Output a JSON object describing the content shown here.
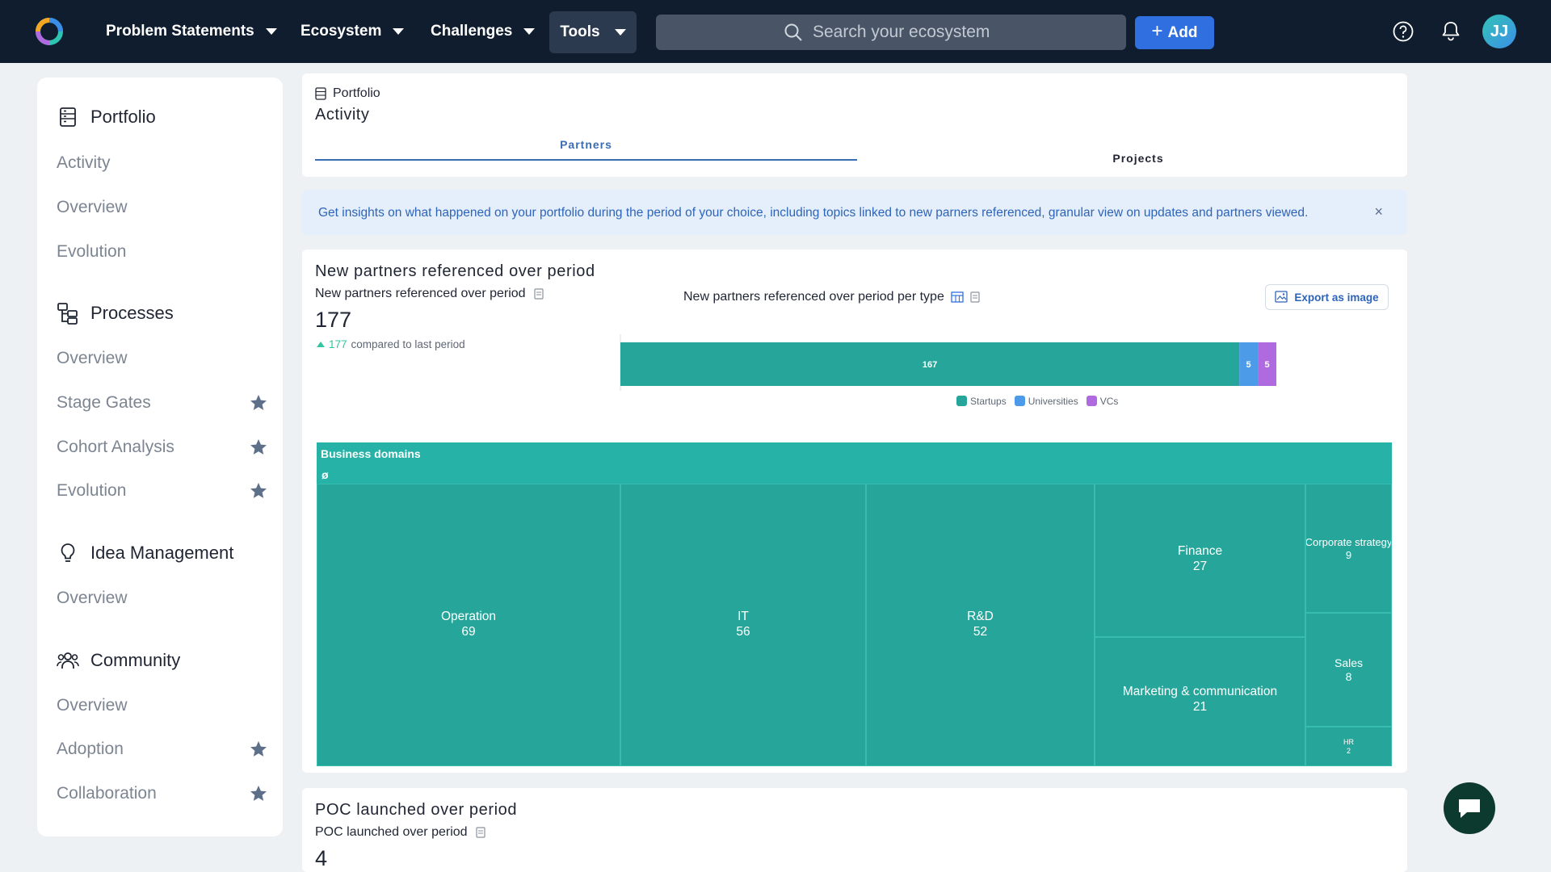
{
  "nav": {
    "items": [
      "Problem Statements",
      "Ecosystem",
      "Challenges",
      "Tools"
    ],
    "search_placeholder": "Search your ecosystem",
    "add_label": "Add",
    "avatar_initials": "JJ"
  },
  "sidebar": {
    "sections": [
      {
        "title": "Portfolio",
        "icon": "portfolio-icon",
        "items": [
          {
            "label": "Activity",
            "starred": false
          },
          {
            "label": "Overview",
            "starred": false
          },
          {
            "label": "Evolution",
            "starred": false
          }
        ]
      },
      {
        "title": "Processes",
        "icon": "processes-icon",
        "items": [
          {
            "label": "Overview",
            "starred": false
          },
          {
            "label": "Stage Gates",
            "starred": true
          },
          {
            "label": "Cohort Analysis",
            "starred": true
          },
          {
            "label": "Evolution",
            "starred": true
          }
        ]
      },
      {
        "title": "Idea Management",
        "icon": "lightbulb-icon",
        "items": [
          {
            "label": "Overview",
            "starred": false
          }
        ]
      },
      {
        "title": "Community",
        "icon": "community-icon",
        "items": [
          {
            "label": "Overview",
            "starred": false
          },
          {
            "label": "Adoption",
            "starred": true
          },
          {
            "label": "Collaboration",
            "starred": true
          }
        ]
      }
    ]
  },
  "header": {
    "breadcrumb": "Portfolio",
    "title": "Activity",
    "tabs": [
      {
        "label": "Partners",
        "active": true
      },
      {
        "label": "Projects",
        "active": false
      }
    ]
  },
  "info": {
    "text": "Get insights on what happened on your portfolio during the period of your choice, including topics linked to new parners referenced, granular view on updates and partners viewed.",
    "close": "×"
  },
  "partners_panel": {
    "title": "New partners referenced over period",
    "kpi_label": "New partners referenced over period",
    "kpi_value": "177",
    "delta_value": "177",
    "delta_text": "compared to last period",
    "bar_title": "New partners referenced over period per type",
    "export_label": "Export as image"
  },
  "poc_panel": {
    "title": "POC launched over period",
    "kpi_label": "POC launched over period",
    "kpi_value": "4"
  },
  "colors": {
    "startups": "#26a69a",
    "universities": "#4c9be8",
    "vcs": "#b06ae0",
    "accent": "#2f6fe0"
  },
  "chart_data": [
    {
      "type": "bar",
      "orientation": "horizontal-stacked",
      "title": "New partners referenced over period per type",
      "categories": [
        ""
      ],
      "series": [
        {
          "name": "Startups",
          "values": [
            167
          ]
        },
        {
          "name": "Universities",
          "values": [
            5
          ]
        },
        {
          "name": "VCs",
          "values": [
            5
          ]
        }
      ],
      "legend": "bottom"
    },
    {
      "type": "treemap",
      "title": "Business domains",
      "subtitle": "ø",
      "items": [
        {
          "label": "Operation",
          "value": 69
        },
        {
          "label": "IT",
          "value": 56
        },
        {
          "label": "R&D",
          "value": 52
        },
        {
          "label": "Finance",
          "value": 27
        },
        {
          "label": "Marketing & communication",
          "value": 21
        },
        {
          "label": "Corporate strategy",
          "value": 9
        },
        {
          "label": "Sales",
          "value": 8
        },
        {
          "label": "HR",
          "value": 2
        }
      ]
    }
  ]
}
